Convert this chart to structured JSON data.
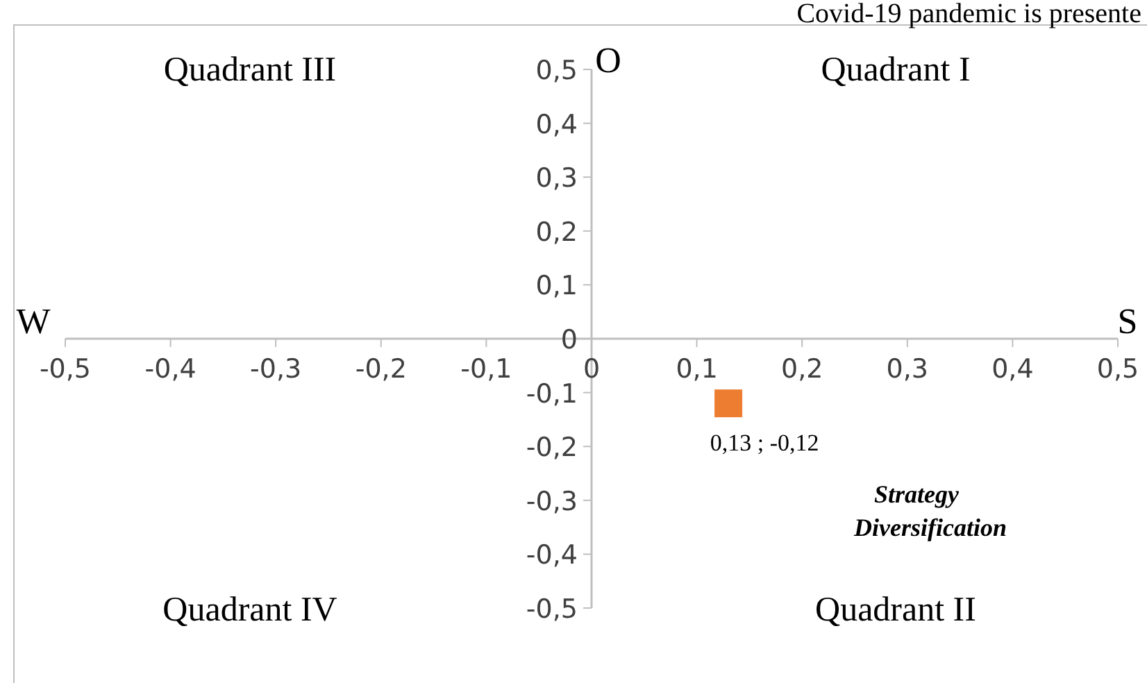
{
  "chart_data": {
    "type": "scatter",
    "x": [
      0.13
    ],
    "values": [
      -0.12
    ],
    "color": "#ed7d31",
    "marker": "square",
    "value_labels": [
      "0,13 ; -0,12"
    ],
    "xlim": [
      -0.5,
      0.5
    ],
    "ylim": [
      -0.5,
      0.5
    ],
    "xticks": [
      {
        "value": -0.5,
        "label": "-0,5"
      },
      {
        "value": -0.4,
        "label": "-0,4"
      },
      {
        "value": -0.3,
        "label": "-0,3"
      },
      {
        "value": -0.2,
        "label": "-0,2"
      },
      {
        "value": -0.1,
        "label": "-0,1"
      },
      0,
      {
        "value": 0.1,
        "label": "0,1"
      },
      {
        "value": 0.2,
        "label": "0,2"
      },
      {
        "value": 0.3,
        "label": "0,3"
      },
      {
        "value": 0.4,
        "label": "0,4"
      },
      {
        "value": 0.5,
        "label": "0,5"
      }
    ],
    "yticks": [
      {
        "value": -0.5,
        "label": "-0,5"
      },
      {
        "value": -0.4,
        "label": "-0,4"
      },
      {
        "value": -0.3,
        "label": "-0,3"
      },
      {
        "value": -0.2,
        "label": "-0,2"
      },
      {
        "value": -0.1,
        "label": "-0,1"
      },
      0,
      {
        "value": 0.1,
        "label": "0,1"
      },
      {
        "value": 0.2,
        "label": "0,2"
      },
      {
        "value": 0.3,
        "label": "0,3"
      },
      {
        "value": 0.4,
        "label": "0,4"
      },
      {
        "value": 0.5,
        "label": "0,5"
      }
    ],
    "annotations": [
      "Quadrant III",
      "Quadrant I",
      "Quadrant IV",
      "Quadrant II",
      "W",
      "S",
      "O",
      "Strategy Diversification",
      "Covid-19 pandemic is presente"
    ]
  }
}
